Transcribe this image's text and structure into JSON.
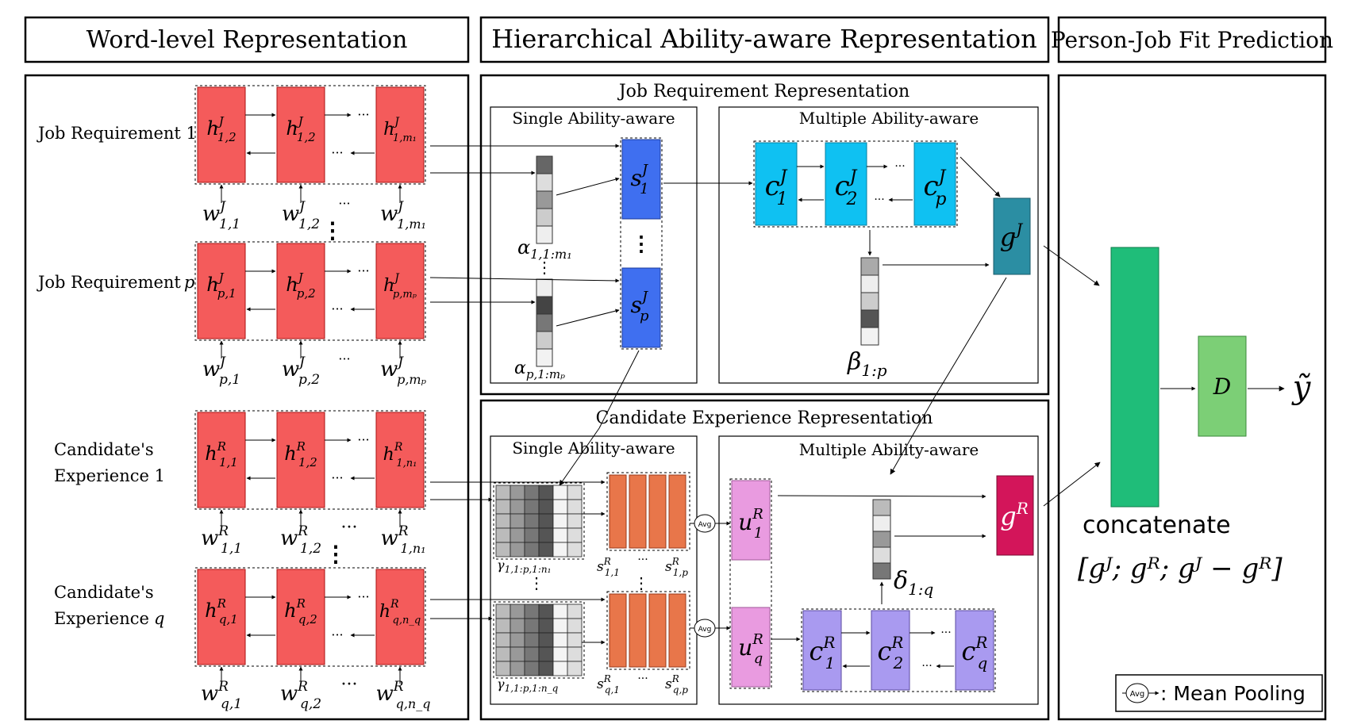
{
  "headers": {
    "word_level": "Word-level Representation",
    "hierarchical": "Hierarchical Ability-aware Representation",
    "prediction": "Person-Job Fit Prediction"
  },
  "word_level": {
    "job_req_1": "Job Requirement 1",
    "job_req_p_text": "Job Requirement",
    "job_req_p_var": "p",
    "cand_exp_1_line1": "Candidate's",
    "cand_exp_1_line2": "Experience 1",
    "cand_exp_q_line1": "Candidate's",
    "cand_exp_q_line2_text": "Experience",
    "cand_exp_q_line2_var": "q",
    "ellipsis": "···",
    "vdots": "⋮"
  },
  "job_section": {
    "title": "Job Requirement Representation",
    "single": "Single Ability-aware",
    "multiple": "Multiple Ability-aware"
  },
  "cand_section": {
    "title": "Candidate Experience Representation",
    "single": "Single Ability-aware",
    "multiple": "Multiple Ability-aware"
  },
  "symbols": {
    "h_base": "h",
    "w_base": "w",
    "s_base": "s",
    "c_base": "c",
    "u_base": "u",
    "g_base": "g",
    "sup_J": "J",
    "sup_R": "R",
    "sub_12": "1,2",
    "sub_1m1": "1,m₁",
    "sub_11": "1,1",
    "sub_p1": "p,1",
    "sub_p2": "p,2",
    "sub_pmp": "p,mₚ",
    "sub_1n1": "1,n₁",
    "sub_q1": "q,1",
    "sub_q2": "q,2",
    "sub_qnq": "q,n_q",
    "sub_1": "1",
    "sub_2": "2",
    "sub_p": "p",
    "sub_q": "q",
    "sub_1p": "1,p",
    "sub_qp": "q,p",
    "alpha_1": "α",
    "alpha_1_sub": "1,1:m₁",
    "alpha_p": "α",
    "alpha_p_sub": "p,1:mₚ",
    "beta": "β",
    "beta_sub": "1:p",
    "delta": "δ",
    "delta_sub": "1:q",
    "gamma": "γ",
    "gamma_1_sub": "1,1:p,1:n₁",
    "gamma_q_sub": "1,1:p,1:n_q",
    "avg": "Avg"
  },
  "prediction": {
    "concatenate": "concatenate",
    "concat_formula": "[gᴶ; gᴿ; gᴶ − gᴿ]",
    "D": "D",
    "y_hat": "ỹ"
  },
  "legend": {
    "avg": "Avg",
    "text": ": Mean Pooling"
  },
  "colors": {
    "word_block": "#f45b5b",
    "s_block": "#3f6ff0",
    "c_block": "#0fc1f2",
    "gJ": "#2b8ea3",
    "orange": "#e8764a",
    "u_block": "#e99be0",
    "cR": "#a99af0",
    "gR": "#d3155a",
    "concat": "#1fbd79",
    "D": "#7ccf76"
  }
}
